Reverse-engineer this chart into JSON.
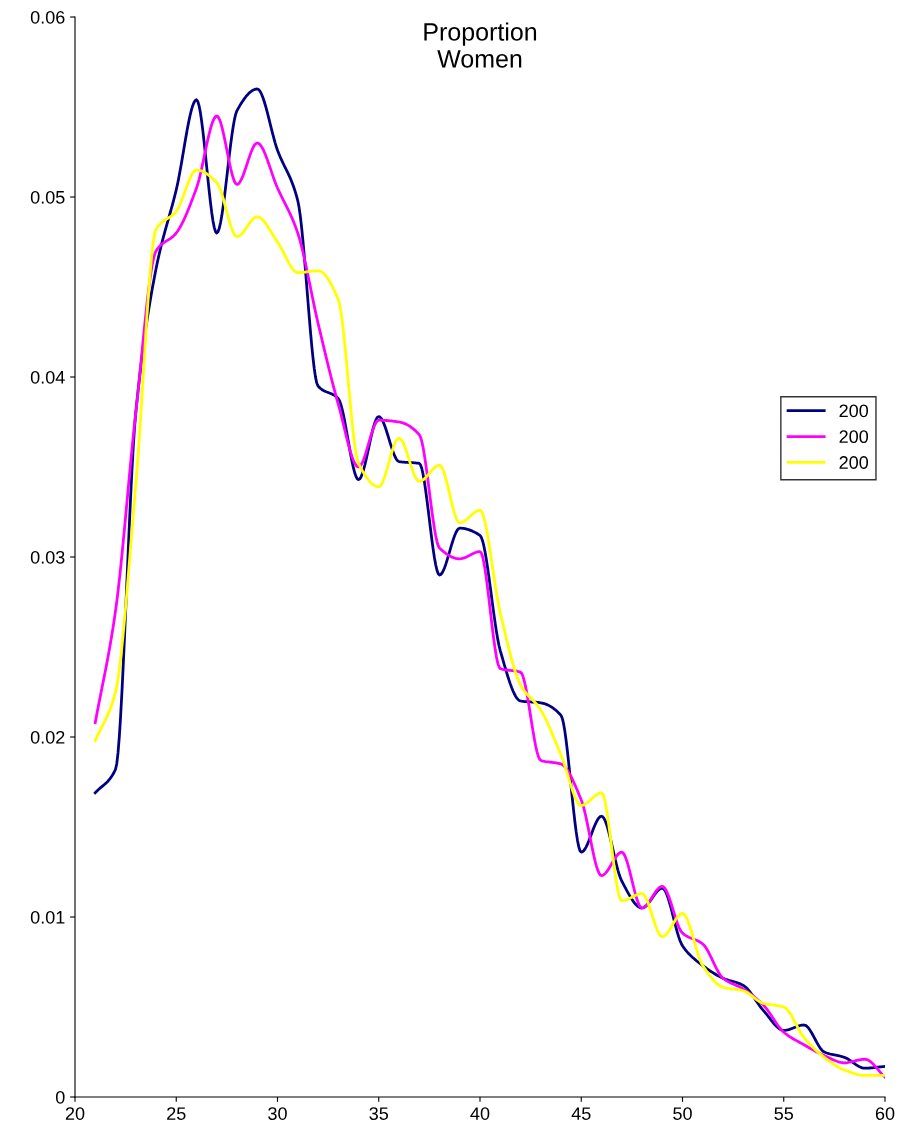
{
  "chart_data": {
    "type": "line",
    "title": "Proportion\nWomen",
    "x": [
      21,
      22,
      23,
      24,
      25,
      26,
      27,
      28,
      29,
      30,
      31,
      32,
      33,
      34,
      35,
      36,
      37,
      38,
      39,
      40,
      41,
      42,
      43,
      44,
      45,
      46,
      47,
      48,
      49,
      50,
      51,
      52,
      53,
      54,
      55,
      56,
      57,
      58,
      59,
      60
    ],
    "series": [
      {
        "name": "200",
        "color": "#000080",
        "values": [
          0.0169,
          0.0182,
          0.038,
          0.046,
          0.0504,
          0.0554,
          0.048,
          0.0548,
          0.056,
          0.0526,
          0.0498,
          0.0395,
          0.0388,
          0.0343,
          0.0378,
          0.0353,
          0.0352,
          0.029,
          0.0316,
          0.0312,
          0.0248,
          0.022,
          0.0219,
          0.0212,
          0.0136,
          0.0156,
          0.012,
          0.0105,
          0.0116,
          0.0084,
          0.0073,
          0.0066,
          0.0062,
          0.0048,
          0.0037,
          0.004,
          0.0025,
          0.0022,
          0.0016,
          0.0017
        ]
      },
      {
        "name": "200",
        "color": "#ff00ff",
        "values": [
          0.0208,
          0.027,
          0.038,
          0.047,
          0.048,
          0.0505,
          0.0545,
          0.0507,
          0.053,
          0.0505,
          0.048,
          0.043,
          0.0385,
          0.035,
          0.0376,
          0.0375,
          0.0368,
          0.0305,
          0.0299,
          0.0303,
          0.0238,
          0.0236,
          0.0187,
          0.0185,
          0.0165,
          0.0123,
          0.0136,
          0.0105,
          0.0117,
          0.0091,
          0.0085,
          0.0066,
          0.006,
          0.0051,
          0.0036,
          0.0029,
          0.0023,
          0.0019,
          0.0021,
          0.0011
        ]
      },
      {
        "name": "200",
        "color": "#ffff00",
        "values": [
          0.0198,
          0.0225,
          0.034,
          0.0482,
          0.0492,
          0.0515,
          0.0508,
          0.0478,
          0.0489,
          0.0475,
          0.0458,
          0.0459,
          0.0443,
          0.0352,
          0.0339,
          0.0366,
          0.0342,
          0.0351,
          0.0319,
          0.0326,
          0.0269,
          0.0229,
          0.0215,
          0.019,
          0.0162,
          0.0169,
          0.0109,
          0.0113,
          0.0089,
          0.0102,
          0.0073,
          0.0061,
          0.0059,
          0.0052,
          0.005,
          0.0033,
          0.0022,
          0.0015,
          0.0012,
          0.0012
        ]
      }
    ],
    "xlim": [
      20,
      60
    ],
    "xticks": [
      20,
      25,
      30,
      35,
      40,
      45,
      50,
      55,
      60
    ],
    "ylim": [
      0,
      0.06
    ],
    "yticks": [
      {
        "value": 0,
        "label": "0"
      },
      0.01,
      0.02,
      0.03,
      0.04,
      0.05,
      0.06
    ],
    "grid": false,
    "legend": "right",
    "marker": "none",
    "line_style": "solid"
  }
}
